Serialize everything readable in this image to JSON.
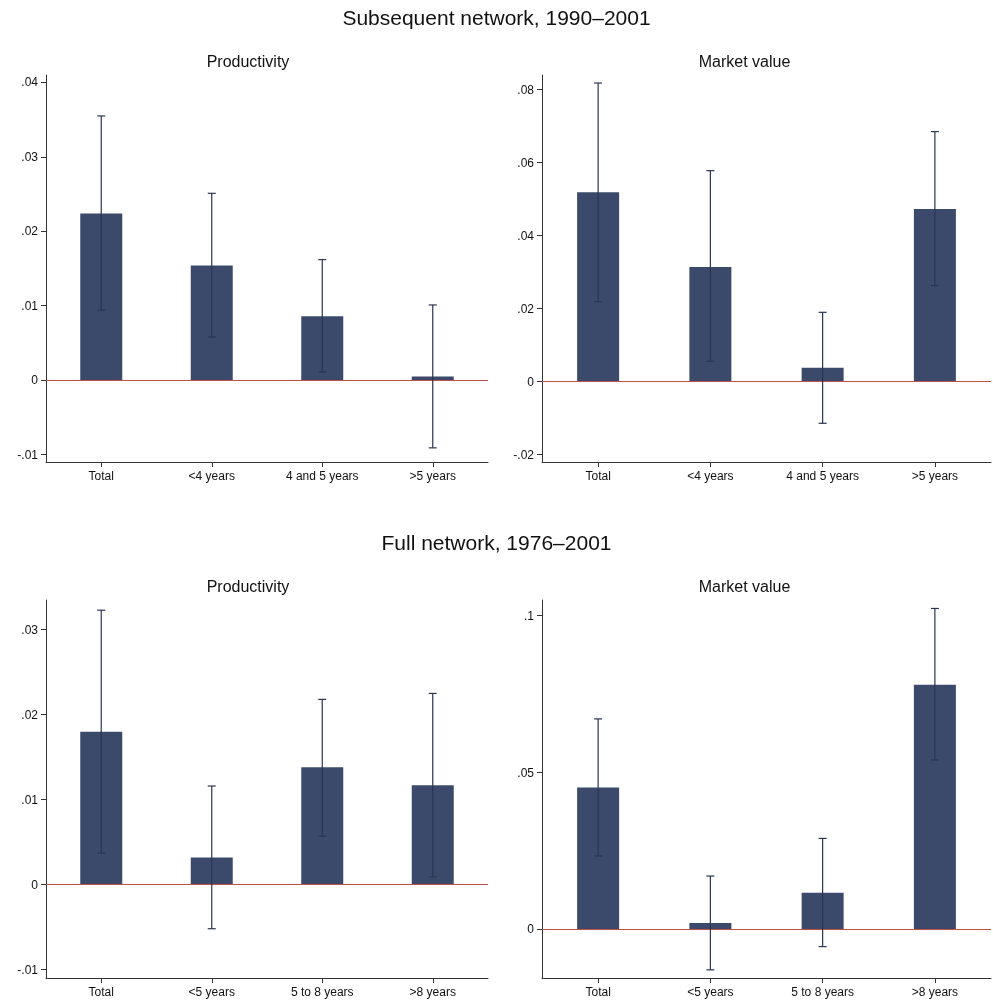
{
  "chart_data": [
    {
      "type": "bar",
      "subtitle": "Subsequent network, 1990–2001",
      "title": "Productivity",
      "categories": [
        "Total",
        "<4 years",
        "4 and 5 years",
        ">5 years"
      ],
      "color": "#3b4a6b",
      "values": [
        0.0224,
        0.0154,
        0.0086,
        0.0005
      ],
      "errors": [
        [
          0.0094,
          0.0355
        ],
        [
          0.0058,
          0.0251
        ],
        [
          0.0011,
          0.0162
        ],
        [
          -0.0091,
          0.0101
        ]
      ],
      "ylim": [
        -0.011,
        0.041
      ],
      "yticks": [
        {
          "value": -0.01,
          "label": "-.01"
        },
        {
          "value": 0,
          "label": "0"
        },
        {
          "value": 0.01,
          "label": ".01"
        },
        {
          "value": 0.02,
          "label": ".02"
        },
        {
          "value": 0.03,
          "label": ".03"
        },
        {
          "value": 0.04,
          "label": ".04"
        }
      ],
      "ref_lines": [
        {
          "axis": "y",
          "value": 0,
          "color": "#c0504d"
        }
      ],
      "grid": false
    },
    {
      "type": "bar",
      "title": "Market value",
      "categories": [
        "Total",
        "<4 years",
        "4 and 5 years",
        ">5 years"
      ],
      "color": "#3b4a6b",
      "values": [
        0.0519,
        0.0314,
        0.0038,
        0.0473
      ],
      "errors": [
        [
          0.0219,
          0.0818
        ],
        [
          0.0056,
          0.0578
        ],
        [
          -0.0114,
          0.019
        ],
        [
          0.0263,
          0.0685
        ]
      ],
      "ylim": [
        -0.022,
        0.084
      ],
      "yticks": [
        {
          "value": -0.02,
          "label": "-.02"
        },
        {
          "value": 0,
          "label": "0"
        },
        {
          "value": 0.02,
          "label": ".02"
        },
        {
          "value": 0.04,
          "label": ".04"
        },
        {
          "value": 0.06,
          "label": ".06"
        },
        {
          "value": 0.08,
          "label": ".08"
        }
      ],
      "ref_lines": [
        {
          "axis": "y",
          "value": 0,
          "color": "#c0504d"
        }
      ],
      "grid": false
    },
    {
      "type": "bar",
      "subtitle": "Full network, 1976–2001",
      "title": "Productivity",
      "categories": [
        "Total",
        "<5 years",
        "5 to 8 years",
        ">8 years"
      ],
      "color": "#3b4a6b",
      "values": [
        0.018,
        0.0032,
        0.0138,
        0.0117
      ],
      "errors": [
        [
          0.0037,
          0.0323
        ],
        [
          -0.0052,
          0.0116
        ],
        [
          0.0057,
          0.0218
        ],
        [
          0.0009,
          0.0225
        ]
      ],
      "ylim": [
        -0.011,
        0.0335
      ],
      "yticks": [
        {
          "value": -0.01,
          "label": "-.01"
        },
        {
          "value": 0,
          "label": "0"
        },
        {
          "value": 0.01,
          "label": ".01"
        },
        {
          "value": 0.02,
          "label": ".02"
        },
        {
          "value": 0.03,
          "label": ".03"
        }
      ],
      "ref_lines": [
        {
          "axis": "y",
          "value": 0,
          "color": "#c0504d"
        }
      ],
      "grid": false
    },
    {
      "type": "bar",
      "title": "Market value",
      "categories": [
        "Total",
        "<5 years",
        "5 to 8 years",
        ">8 years"
      ],
      "color": "#3b4a6b",
      "values": [
        0.0452,
        0.002,
        0.0117,
        0.078
      ],
      "errors": [
        [
          0.0234,
          0.0671
        ],
        [
          -0.0129,
          0.017
        ],
        [
          -0.0055,
          0.029
        ],
        [
          0.054,
          0.1023
        ]
      ],
      "ylim": [
        -0.0155,
        0.105
      ],
      "yticks": [
        {
          "value": 0,
          "label": "0"
        },
        {
          "value": 0.05,
          "label": ".05"
        },
        {
          "value": 0.1,
          "label": ".1"
        }
      ],
      "ref_lines": [
        {
          "axis": "y",
          "value": 0,
          "color": "#c0504d"
        }
      ],
      "grid": false
    }
  ]
}
